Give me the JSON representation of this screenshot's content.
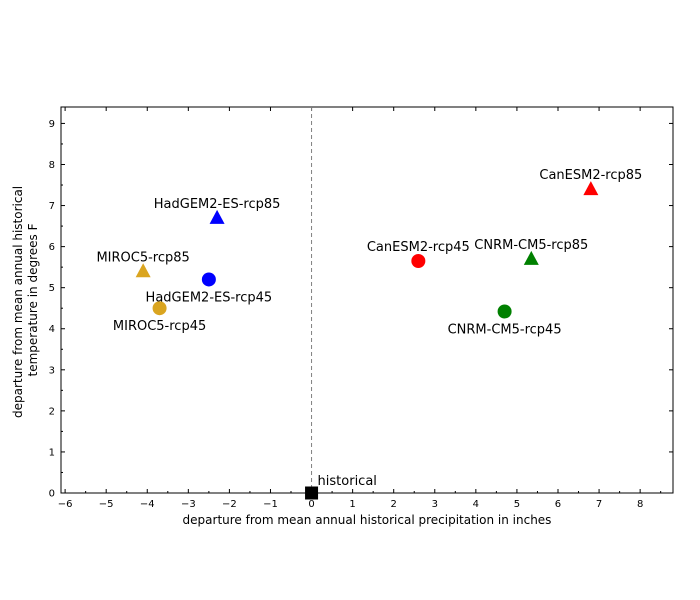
{
  "chart_data": {
    "type": "scatter",
    "title": "",
    "xlabel": "departure from mean annual historical precipitation in inches",
    "ylabel_lines": [
      "departure from mean annual historical",
      "temperature in degrees F"
    ],
    "xlim": [
      -6.1,
      8.8
    ],
    "ylim": [
      0,
      9.4
    ],
    "xticks": [
      -6,
      -5,
      -4,
      -3,
      -2,
      -1,
      0,
      1,
      2,
      3,
      4,
      5,
      6,
      7,
      8
    ],
    "yticks": [
      0,
      1,
      2,
      3,
      4,
      5,
      6,
      7,
      8,
      9
    ],
    "grid": false,
    "reference_line": {
      "x": 0,
      "style": "dashed",
      "color": "#808080"
    },
    "points": [
      {
        "label": "historical",
        "x": 0,
        "y": 0,
        "marker": "square",
        "color": "#000000",
        "label_pos": "upper-right"
      },
      {
        "label": "MIROC5-rcp85",
        "x": -4.1,
        "y": 5.4,
        "marker": "triangle",
        "color": "#daa520",
        "label_pos": "above"
      },
      {
        "label": "MIROC5-rcp45",
        "x": -3.7,
        "y": 4.5,
        "marker": "circle",
        "color": "#daa520",
        "label_pos": "below"
      },
      {
        "label": "HadGEM2-ES-rcp85",
        "x": -2.3,
        "y": 6.7,
        "marker": "triangle",
        "color": "#0000ff",
        "label_pos": "above"
      },
      {
        "label": "HadGEM2-ES-rcp45",
        "x": -2.5,
        "y": 5.2,
        "marker": "circle",
        "color": "#0000ff",
        "label_pos": "below"
      },
      {
        "label": "CanESM2-rcp45",
        "x": 2.6,
        "y": 5.65,
        "marker": "circle",
        "color": "#ff0000",
        "label_pos": "above"
      },
      {
        "label": "CanESM2-rcp85",
        "x": 6.8,
        "y": 7.4,
        "marker": "triangle",
        "color": "#ff0000",
        "label_pos": "above"
      },
      {
        "label": "CNRM-CM5-rcp85",
        "x": 5.35,
        "y": 5.7,
        "marker": "triangle",
        "color": "#008000",
        "label_pos": "above"
      },
      {
        "label": "CNRM-CM5-rcp45",
        "x": 4.7,
        "y": 4.42,
        "marker": "circle",
        "color": "#008000",
        "label_pos": "below"
      }
    ]
  }
}
